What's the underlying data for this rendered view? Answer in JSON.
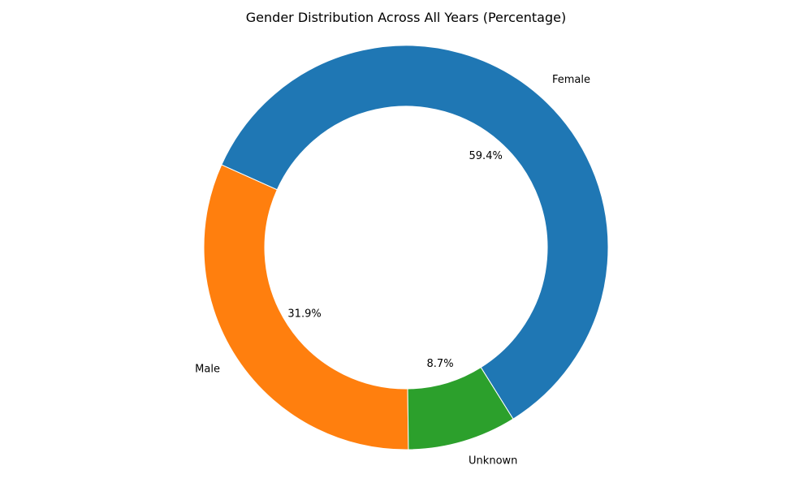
{
  "chart_data": {
    "type": "pie",
    "title": "Gender Distribution Across All Years (Percentage)",
    "categories": [
      "Female",
      "Male",
      "Unknown"
    ],
    "values": [
      59.4,
      31.9,
      8.7
    ],
    "value_labels": [
      "59.4%",
      "31.9%",
      "8.7%"
    ],
    "colors": [
      "#1f77b4",
      "#ff7f0e",
      "#2ca02c"
    ],
    "donut": true,
    "legend": "none"
  }
}
